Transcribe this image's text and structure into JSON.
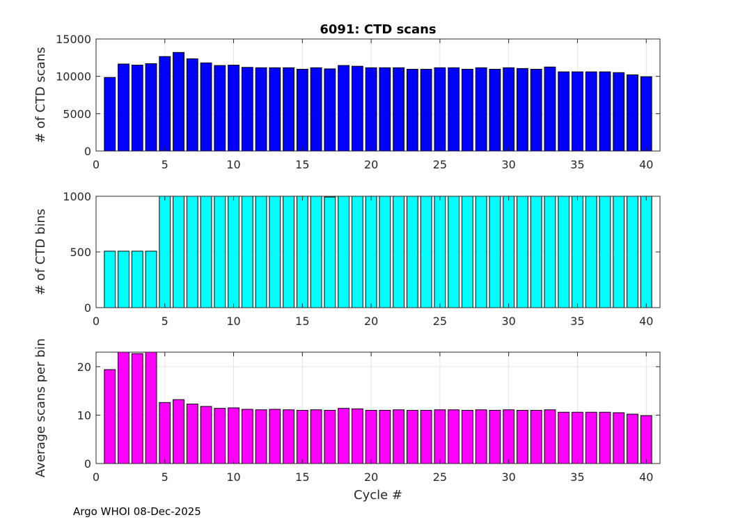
{
  "footer": "Argo WHOI 08-Dec-2025",
  "chart_data": [
    {
      "type": "bar",
      "title": "6091: CTD scans",
      "xlabel": "",
      "ylabel": "# of CTD scans",
      "color": "#0000ff",
      "xlim": [
        0,
        41
      ],
      "ylim": [
        0,
        15000
      ],
      "xticks": [
        0,
        5,
        10,
        15,
        20,
        25,
        30,
        35,
        40
      ],
      "yticks": [
        0,
        5000,
        10000,
        15000
      ],
      "grid": true,
      "x": [
        1,
        2,
        3,
        4,
        5,
        6,
        7,
        8,
        9,
        10,
        11,
        12,
        13,
        14,
        15,
        16,
        17,
        18,
        19,
        20,
        21,
        22,
        23,
        24,
        25,
        26,
        27,
        28,
        29,
        30,
        31,
        32,
        33,
        34,
        35,
        36,
        37,
        38,
        39,
        40
      ],
      "values": [
        9850,
        11650,
        11500,
        11700,
        12650,
        13200,
        12350,
        11800,
        11450,
        11500,
        11200,
        11150,
        11150,
        11150,
        10950,
        11150,
        11000,
        11450,
        11350,
        11150,
        11150,
        11150,
        10950,
        10950,
        11150,
        11150,
        10950,
        11150,
        10950,
        11150,
        11050,
        10950,
        11250,
        10600,
        10600,
        10600,
        10600,
        10500,
        10200,
        9950
      ]
    },
    {
      "type": "bar",
      "title": "",
      "xlabel": "",
      "ylabel": "# of CTD bins",
      "color": "#00ffff",
      "xlim": [
        0,
        41
      ],
      "ylim": [
        0,
        1000
      ],
      "xticks": [
        0,
        5,
        10,
        15,
        20,
        25,
        30,
        35,
        40
      ],
      "yticks": [
        0,
        500,
        1000
      ],
      "grid": true,
      "x": [
        1,
        2,
        3,
        4,
        5,
        6,
        7,
        8,
        9,
        10,
        11,
        12,
        13,
        14,
        15,
        16,
        17,
        18,
        19,
        20,
        21,
        22,
        23,
        24,
        25,
        26,
        27,
        28,
        29,
        30,
        31,
        32,
        33,
        34,
        35,
        36,
        37,
        38,
        39,
        40
      ],
      "values": [
        507,
        507,
        507,
        507,
        1000,
        1000,
        1000,
        1000,
        1000,
        1000,
        1000,
        1000,
        1000,
        1000,
        1000,
        1000,
        993,
        1000,
        1000,
        1000,
        1000,
        1000,
        1000,
        1000,
        1000,
        1000,
        1000,
        1000,
        1000,
        1000,
        1000,
        1000,
        1000,
        1000,
        1000,
        1000,
        1000,
        1000,
        1000,
        1000
      ]
    },
    {
      "type": "bar",
      "title": "",
      "xlabel": "Cycle #",
      "ylabel": "Average scans per bin",
      "color": "#ff00ff",
      "xlim": [
        0,
        41
      ],
      "ylim": [
        0,
        23
      ],
      "xticks": [
        0,
        5,
        10,
        15,
        20,
        25,
        30,
        35,
        40
      ],
      "yticks": [
        0,
        10,
        20
      ],
      "grid": true,
      "x": [
        1,
        2,
        3,
        4,
        5,
        6,
        7,
        8,
        9,
        10,
        11,
        12,
        13,
        14,
        15,
        16,
        17,
        18,
        19,
        20,
        21,
        22,
        23,
        24,
        25,
        26,
        27,
        28,
        29,
        30,
        31,
        32,
        33,
        34,
        35,
        36,
        37,
        38,
        39,
        40
      ],
      "values": [
        19.4,
        23,
        22.7,
        23,
        12.6,
        13.2,
        12.3,
        11.8,
        11.4,
        11.5,
        11.2,
        11.1,
        11.2,
        11.1,
        11.0,
        11.1,
        11.0,
        11.4,
        11.3,
        11.0,
        11.0,
        11.1,
        11.0,
        11.0,
        11.1,
        11.1,
        11.0,
        11.1,
        11.0,
        11.1,
        11.0,
        11.0,
        11.1,
        10.6,
        10.6,
        10.6,
        10.6,
        10.5,
        10.2,
        9.9
      ]
    }
  ]
}
